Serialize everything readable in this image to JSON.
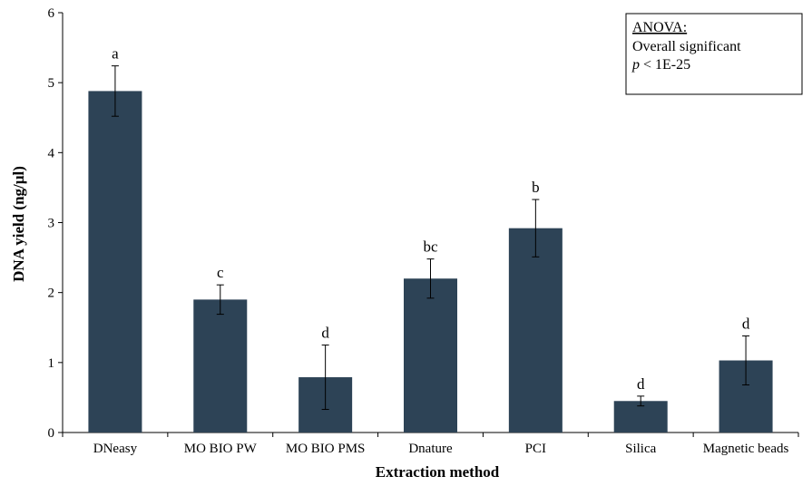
{
  "chart_data": {
    "type": "bar",
    "xlabel": "Extraction method",
    "ylabel": "DNA yield (ng/µl)",
    "ylim": [
      0,
      6
    ],
    "yticks": [
      "0",
      "1",
      "2",
      "3",
      "4",
      "5",
      "6"
    ],
    "categories": [
      "DNeasy",
      "MO BIO PW",
      "MO BIO PMS",
      "Dnature",
      "PCI",
      "Silica",
      "Magnetic beads"
    ],
    "values": [
      4.88,
      1.9,
      0.79,
      2.2,
      2.92,
      0.45,
      1.03
    ],
    "error_bars": [
      0.36,
      0.21,
      0.46,
      0.28,
      0.41,
      0.07,
      0.35
    ],
    "significance_labels": [
      "a",
      "c",
      "d",
      "bc",
      "b",
      "d",
      "d"
    ],
    "bar_color": "#2d4356",
    "grid": false,
    "annotation": {
      "title": "ANOVA:",
      "line1": "Overall significant",
      "p_symbol": "p",
      "p_rest": " < 1E-25"
    }
  }
}
